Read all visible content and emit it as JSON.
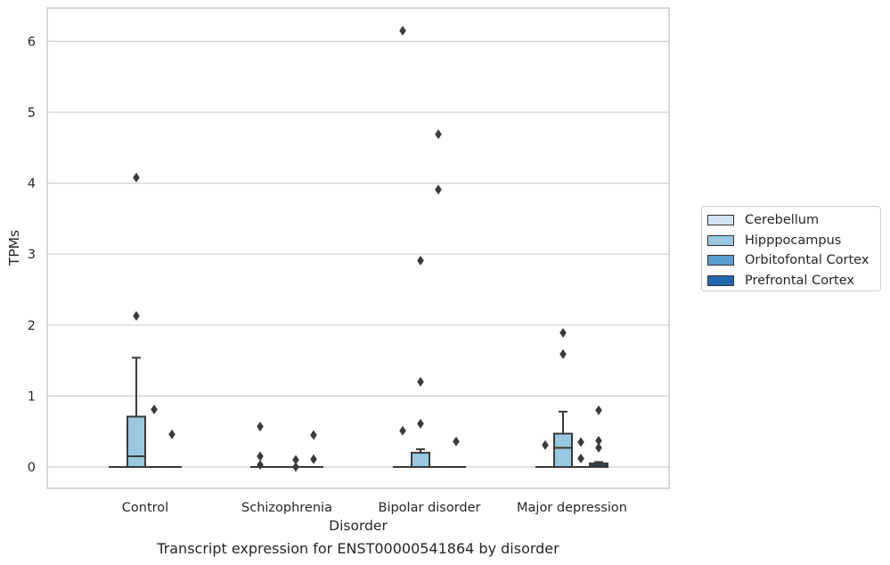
{
  "chart_data": {
    "type": "box",
    "title": "Transcript expression for ENST00000541864 by disorder",
    "xlabel": "Disorder",
    "ylabel": "TPMs",
    "ylim": [
      -0.3,
      6.47
    ],
    "yticks": [
      0,
      1,
      2,
      3,
      4,
      5,
      6
    ],
    "categories": [
      "Control",
      "Schizophrenia",
      "Bipolar disorder",
      "Major depression"
    ],
    "grid": "horizontal",
    "legend_position": "right",
    "series": [
      {
        "name": "Cerebellum",
        "color": "#d3e4f3",
        "boxes": [
          {
            "q1": 0,
            "median": 0,
            "q3": 0,
            "whislo": 0,
            "whishi": 0,
            "fliers": []
          },
          {
            "q1": 0,
            "median": 0,
            "q3": 0,
            "whislo": 0,
            "whishi": 0,
            "fliers": [
              0.57,
              0.15,
              0.03
            ]
          },
          {
            "q1": 0,
            "median": 0,
            "q3": 0,
            "whislo": 0,
            "whishi": 0,
            "fliers": [
              6.15,
              0.51
            ]
          },
          {
            "q1": 0,
            "median": 0,
            "q3": 0,
            "whislo": 0,
            "whishi": 0,
            "fliers": [
              0.31
            ]
          }
        ]
      },
      {
        "name": "Hipppocampus",
        "color": "#9ac8e0",
        "boxes": [
          {
            "q1": 0,
            "median": 0.15,
            "q3": 0.71,
            "whislo": 0,
            "whishi": 1.54,
            "fliers": [
              4.08,
              2.13
            ]
          },
          {
            "q1": 0,
            "median": 0,
            "q3": 0,
            "whislo": 0,
            "whishi": 0,
            "fliers": []
          },
          {
            "q1": 0,
            "median": 0,
            "q3": 0.2,
            "whislo": 0,
            "whishi": 0.25,
            "fliers": [
              2.91,
              1.2,
              0.61
            ]
          },
          {
            "q1": 0,
            "median": 0.27,
            "q3": 0.47,
            "whislo": 0,
            "whishi": 0.78,
            "fliers": [
              1.89,
              1.59
            ]
          }
        ]
      },
      {
        "name": "Orbitofontal Cortex",
        "color": "#5a9ccc",
        "boxes": [
          {
            "q1": 0,
            "median": 0,
            "q3": 0,
            "whislo": 0,
            "whishi": 0,
            "fliers": [
              0.81
            ]
          },
          {
            "q1": 0,
            "median": 0,
            "q3": 0,
            "whislo": 0,
            "whishi": 0,
            "fliers": [
              0.1,
              0.0
            ]
          },
          {
            "q1": 0,
            "median": 0,
            "q3": 0,
            "whislo": 0,
            "whishi": 0,
            "fliers": [
              4.69,
              3.91
            ]
          },
          {
            "q1": 0,
            "median": 0,
            "q3": 0,
            "whislo": 0,
            "whishi": 0,
            "fliers": [
              0.35,
              0.12
            ]
          }
        ]
      },
      {
        "name": "Prefrontal Cortex",
        "color": "#2268ad",
        "boxes": [
          {
            "q1": 0,
            "median": 0,
            "q3": 0,
            "whislo": 0,
            "whishi": 0,
            "fliers": [
              0.46
            ]
          },
          {
            "q1": 0,
            "median": 0,
            "q3": 0,
            "whislo": 0,
            "whishi": 0,
            "fliers": [
              0.45,
              0.11
            ]
          },
          {
            "q1": 0,
            "median": 0,
            "q3": 0,
            "whislo": 0,
            "whishi": 0,
            "fliers": [
              0.36
            ]
          },
          {
            "q1": 0,
            "median": 0.02,
            "q3": 0.05,
            "whislo": 0,
            "whishi": 0.07,
            "fliers": [
              0.8,
              0.37,
              0.27
            ]
          }
        ]
      }
    ]
  }
}
